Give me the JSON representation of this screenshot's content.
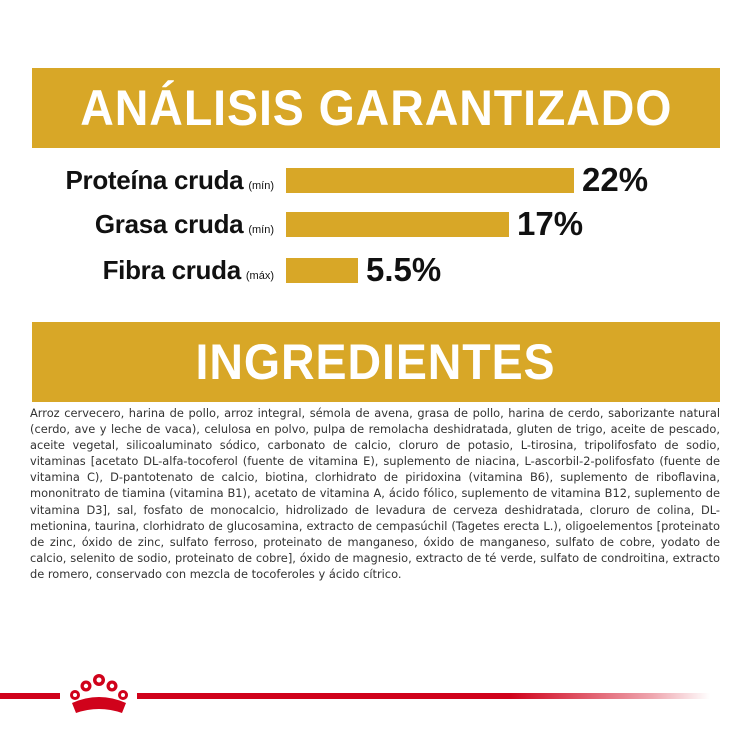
{
  "analysis": {
    "title": "ANÁLISIS GARANTIZADO",
    "rows": [
      {
        "name": "Proteína cruda",
        "qualifier": "(mín)",
        "value": "22%",
        "amount": 22
      },
      {
        "name": "Grasa cruda",
        "qualifier": "(mín)",
        "value": "17%",
        "amount": 17
      },
      {
        "name": "Fibra cruda",
        "qualifier": "(máx)",
        "value": "5.5%",
        "amount": 5.5
      }
    ]
  },
  "ingredients": {
    "title": "INGREDIENTES",
    "text": "Arroz cervecero, harina de pollo, arroz integral, sémola de avena, grasa de pollo, harina de cerdo, saborizante natural (cerdo, ave y leche de vaca), celulosa en polvo, pulpa de remolacha deshidratada, gluten de trigo, aceite de pescado, aceite vegetal, silicoaluminato sódico, carbonato de calcio, cloruro de potasio, L-tirosina, tripolifosfato de sodio, vitaminas [acetato DL-alfa-tocoferol (fuente de vitamina E), suplemento de niacina, L-ascorbil-2-polifosfato (fuente de vitamina C), D-pantotenato de calcio, biotina, clorhidrato de piridoxina (vitamina B6), suplemento de riboflavina, mononitrato de tiamina (vitamina B1), acetato de vitamina A, ácido fólico, suplemento de vitamina B12, suplemento de vitamina D3], sal, fosfato de monocalcio, hidrolizado de levadura de cerveza deshidratada, cloruro de colina, DL-metionina, taurina, clorhidrato de glucosamina, extracto de cempasúchil (Tagetes erecta L.), oligoelementos [proteinato de zinc, óxido de zinc, sulfato ferroso, proteinato de manganeso, óxido de manganeso, sulfato de cobre, yodato de calcio, selenito de sodio, proteinato de cobre], óxido de magnesio, extracto de té verde, sulfato de condroitina, extracto de romero, conservado con mezcla de tocoferoles y ácido cítrico."
  },
  "colors": {
    "banner": "#d8a727",
    "bar": "#d8a727",
    "brand_red": "#d0021b",
    "text": "#333333"
  },
  "footer": {
    "logo_icon": "crown-icon"
  }
}
